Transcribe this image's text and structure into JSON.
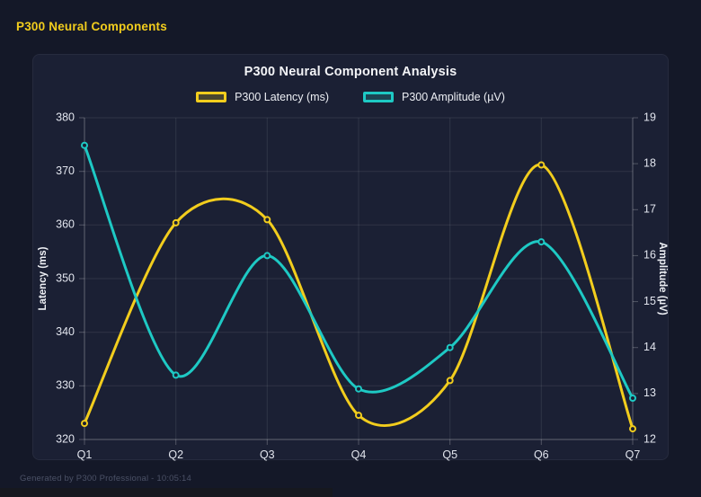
{
  "page": {
    "header": "P300 Neural Components",
    "footer": "Generated by P300 Professional - 10:05:14"
  },
  "colors": {
    "accent_yellow": "#f2cd1d",
    "accent_teal": "#1ec9c4",
    "page_background": "#141828",
    "card_background": "#1b2034",
    "grid_line": "rgba(255,255,255,0.09)",
    "axis_line": "rgba(255,255,255,0.24)",
    "tick_text": "#e2e5ee"
  },
  "chart_data": {
    "type": "line",
    "title": "P300 Neural Component Analysis",
    "categories": [
      "Q1",
      "Q2",
      "Q3",
      "Q4",
      "Q5",
      "Q6",
      "Q7"
    ],
    "series": [
      {
        "name": "P300 Latency (ms)",
        "axis": "left",
        "color": "#f2cd1d",
        "values": [
          323,
          360.4,
          361,
          324.5,
          331,
          371.2,
          322
        ]
      },
      {
        "name": "P300 Amplitude (µV)",
        "axis": "right",
        "color": "#1ec9c4",
        "values": [
          18.4,
          13.4,
          16.0,
          13.1,
          14.0,
          16.3,
          12.9
        ]
      }
    ],
    "left_axis": {
      "label": "Latency (ms)",
      "min": 320,
      "max": 380,
      "ticks": [
        320,
        330,
        340,
        350,
        360,
        370,
        380
      ]
    },
    "right_axis": {
      "label": "Amplitude (µV)",
      "min": 12,
      "max": 19,
      "ticks": [
        12,
        13,
        14,
        15,
        16,
        17,
        18,
        19
      ]
    },
    "grid": true,
    "legend_position": "top",
    "line_tension": 0.15
  }
}
